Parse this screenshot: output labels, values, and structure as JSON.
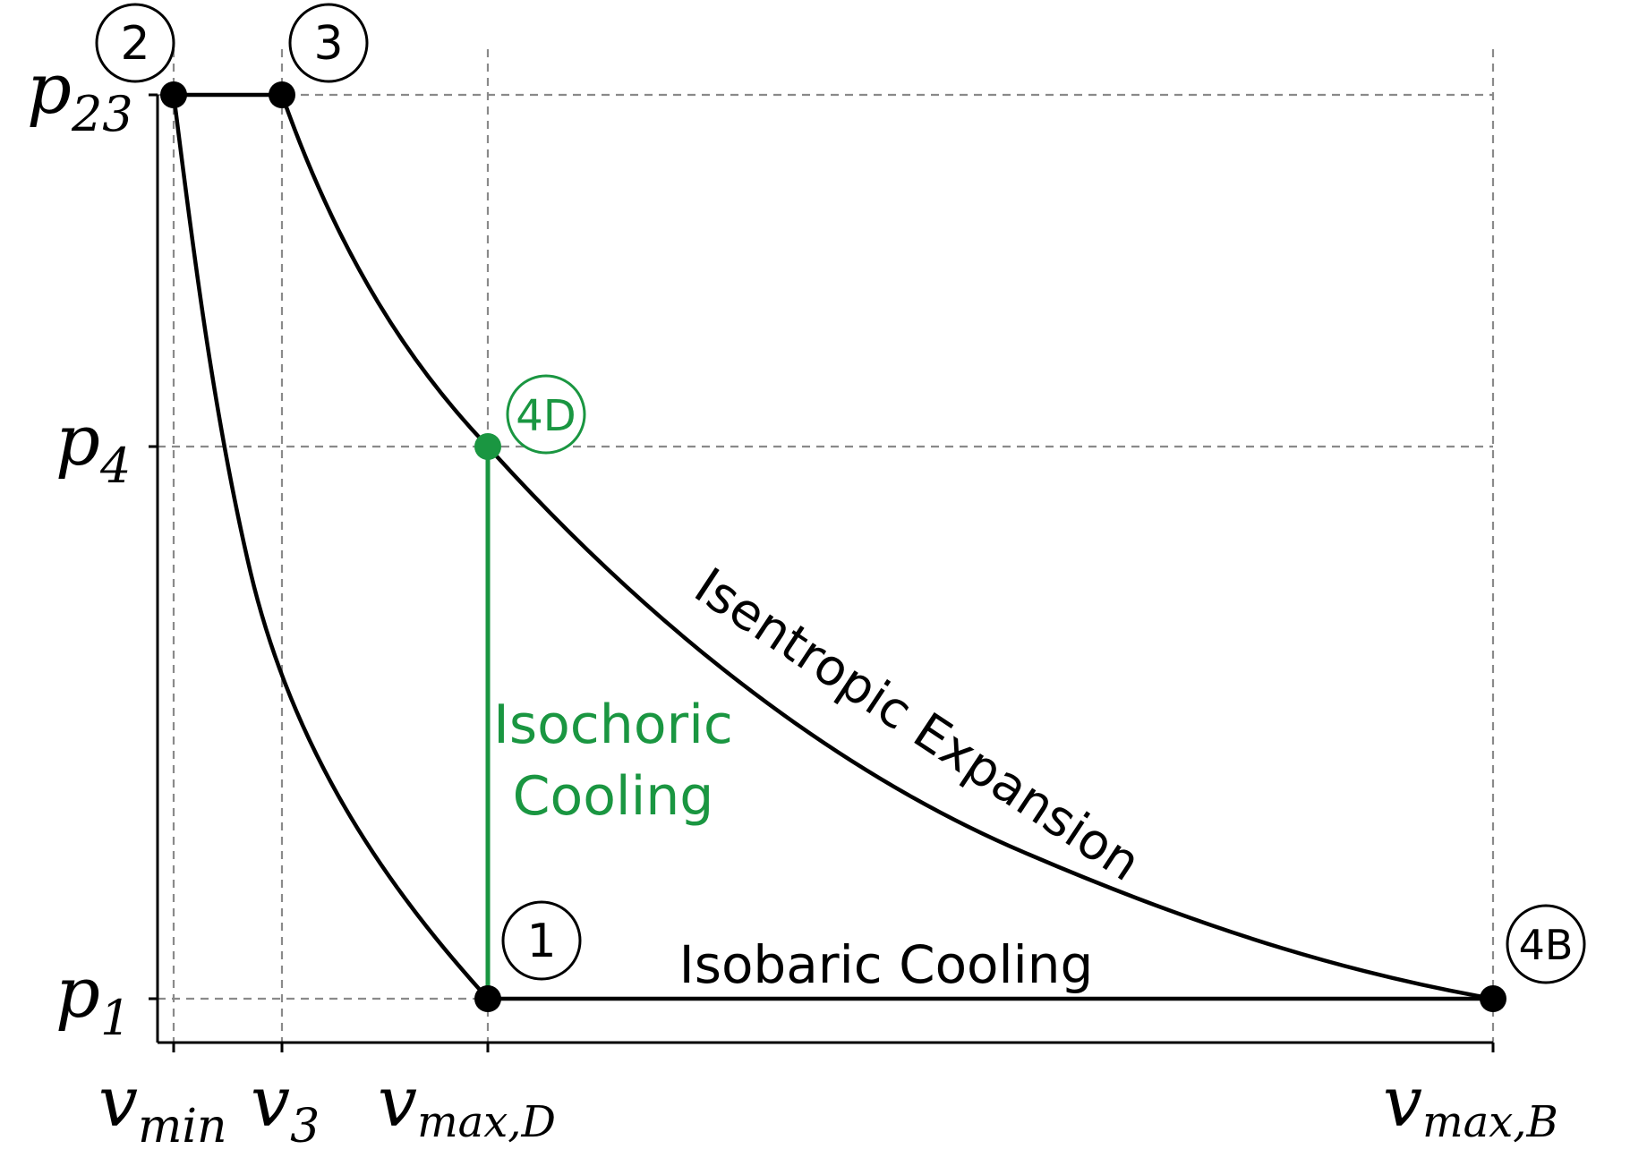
{
  "colors": {
    "process_default": "#000000",
    "process_highlight": "#1a9641",
    "grid": "#8a8a8a"
  },
  "axes": {
    "x_ticks": [
      {
        "id": "vmin",
        "base": "v",
        "sub": "min"
      },
      {
        "id": "v3",
        "base": "v",
        "sub": "3"
      },
      {
        "id": "vmaxD",
        "base": "v",
        "sub": "max,D"
      },
      {
        "id": "vmaxB",
        "base": "v",
        "sub": "max,B"
      }
    ],
    "y_ticks": [
      {
        "id": "p23",
        "base": "p",
        "sub": "23"
      },
      {
        "id": "p4",
        "base": "p",
        "sub": "4"
      },
      {
        "id": "p1",
        "base": "p",
        "sub": "1"
      }
    ]
  },
  "states": [
    {
      "id": "1",
      "label": "1",
      "color": "#000000"
    },
    {
      "id": "2",
      "label": "2",
      "color": "#000000"
    },
    {
      "id": "3",
      "label": "3",
      "color": "#000000"
    },
    {
      "id": "4D",
      "label": "4D",
      "color": "#1a9641"
    },
    {
      "id": "4B",
      "label": "4B",
      "color": "#000000"
    }
  ],
  "processes": {
    "isentropic_expansion": "Isentropic Expansion",
    "isochoric_cooling_line1": "Isochoric",
    "isochoric_cooling_line2": "Cooling",
    "isobaric_cooling": "Isobaric Cooling"
  }
}
